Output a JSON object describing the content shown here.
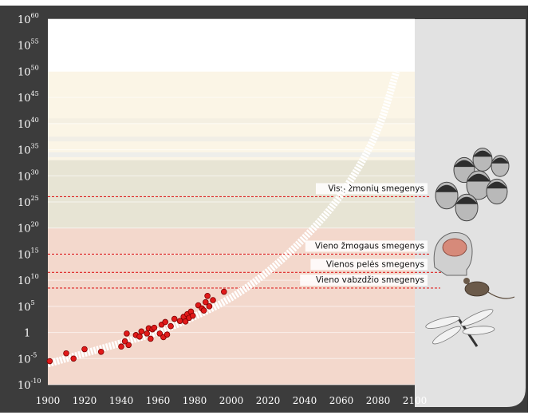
{
  "chart_data": {
    "type": "scatter",
    "title": "",
    "xlabel": "",
    "ylabel": "",
    "x_range": [
      1900,
      2100
    ],
    "y_scale": "log10",
    "y_range_exponent": [
      -10,
      60
    ],
    "x_ticks": [
      "1900",
      "1920",
      "1940",
      "1960",
      "1980",
      "2000",
      "2020",
      "2040",
      "2060",
      "2080",
      "2100"
    ],
    "y_ticks": [
      {
        "base": "10",
        "exp": "60",
        "value_exp": 60
      },
      {
        "base": "10",
        "exp": "55",
        "value_exp": 55
      },
      {
        "base": "10",
        "exp": "50",
        "value_exp": 50
      },
      {
        "base": "10",
        "exp": "45",
        "value_exp": 45
      },
      {
        "base": "10",
        "exp": "40",
        "value_exp": 40
      },
      {
        "base": "10",
        "exp": "35",
        "value_exp": 35
      },
      {
        "base": "10",
        "exp": "30",
        "value_exp": 30
      },
      {
        "base": "10",
        "exp": "25",
        "value_exp": 25
      },
      {
        "base": "10",
        "exp": "20",
        "value_exp": 20
      },
      {
        "base": "10",
        "exp": "15",
        "value_exp": 15
      },
      {
        "base": "10",
        "exp": "10",
        "value_exp": 10
      },
      {
        "base": "10",
        "exp": "5",
        "value_exp": 5
      },
      {
        "base": "1",
        "exp": "",
        "value_exp": 0
      },
      {
        "base": "10",
        "exp": "-5",
        "value_exp": -5
      },
      {
        "base": "10",
        "exp": "-10",
        "value_exp": -10
      }
    ],
    "thresholds": [
      {
        "label": "Visų žmonių smegenys",
        "y_exp": 26,
        "icon": "human-faces-icon"
      },
      {
        "label": "Vieno žmogaus smegenys",
        "y_exp": 15,
        "icon": "human-head-brain-icon"
      },
      {
        "label": "Vienos pelės smegenys",
        "y_exp": 11.5,
        "icon": "mouse-icon"
      },
      {
        "label": "Vieno vabzdžio smegenys",
        "y_exp": 8.5,
        "icon": "dragonfly-icon"
      }
    ],
    "trend": {
      "x": [
        1900,
        1920,
        1940,
        1960,
        1980,
        2000,
        2020,
        2040,
        2060,
        2080,
        2090
      ],
      "y_exp": [
        -6,
        -4,
        -2,
        0,
        3,
        6.5,
        11.5,
        18,
        26,
        38,
        50
      ]
    },
    "points": [
      {
        "x": 1901,
        "y_exp": -5.5
      },
      {
        "x": 1910,
        "y_exp": -4
      },
      {
        "x": 1914,
        "y_exp": -5
      },
      {
        "x": 1920,
        "y_exp": -3.2
      },
      {
        "x": 1929,
        "y_exp": -3.7
      },
      {
        "x": 1940,
        "y_exp": -2.7
      },
      {
        "x": 1942,
        "y_exp": -1.7
      },
      {
        "x": 1943,
        "y_exp": -0.2
      },
      {
        "x": 1944,
        "y_exp": -2.4
      },
      {
        "x": 1948,
        "y_exp": -0.5
      },
      {
        "x": 1950,
        "y_exp": -0.8
      },
      {
        "x": 1951,
        "y_exp": 0.2
      },
      {
        "x": 1954,
        "y_exp": -0.2
      },
      {
        "x": 1955,
        "y_exp": 0.8
      },
      {
        "x": 1956,
        "y_exp": -1.2
      },
      {
        "x": 1957,
        "y_exp": 0.6
      },
      {
        "x": 1958,
        "y_exp": 0.9
      },
      {
        "x": 1961,
        "y_exp": -0.2
      },
      {
        "x": 1962,
        "y_exp": 1.5
      },
      {
        "x": 1963,
        "y_exp": -0.9
      },
      {
        "x": 1964,
        "y_exp": 2.0
      },
      {
        "x": 1965,
        "y_exp": -0.4
      },
      {
        "x": 1967,
        "y_exp": 1.2
      },
      {
        "x": 1969,
        "y_exp": 2.6
      },
      {
        "x": 1972,
        "y_exp": 2.2
      },
      {
        "x": 1974,
        "y_exp": 3.0
      },
      {
        "x": 1975,
        "y_exp": 2.1
      },
      {
        "x": 1976,
        "y_exp": 3.5
      },
      {
        "x": 1977,
        "y_exp": 2.8
      },
      {
        "x": 1978,
        "y_exp": 4.0
      },
      {
        "x": 1979,
        "y_exp": 3.2
      },
      {
        "x": 1982,
        "y_exp": 5.2
      },
      {
        "x": 1984,
        "y_exp": 4.6
      },
      {
        "x": 1985,
        "y_exp": 4.2
      },
      {
        "x": 1986,
        "y_exp": 5.8
      },
      {
        "x": 1987,
        "y_exp": 7.0
      },
      {
        "x": 1988,
        "y_exp": 5.0
      },
      {
        "x": 1990,
        "y_exp": 6.2
      },
      {
        "x": 1996,
        "y_exp": 7.8
      }
    ],
    "grid": true,
    "legend": "none",
    "colors": {
      "frame": "#3c3c3c",
      "right_panel": "#e2e2e2",
      "band_low": "#f3d8cc",
      "band_mid": "#e7e4d4",
      "band_high_light": "#fbf5e6",
      "band_top": "#ffffff",
      "threshold_line": "#dd2222",
      "point_fill": "#e11a1a",
      "point_stroke": "#7a0000",
      "trend": "#ffffff"
    }
  }
}
